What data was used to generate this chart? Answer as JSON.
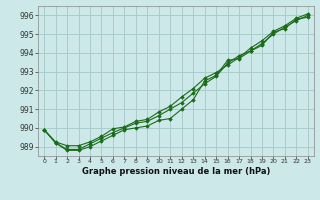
{
  "title": "Graphe pression niveau de la mer (hPa)",
  "bg_color": "#cce8e8",
  "grid_color": "#aacccc",
  "line_color": "#1a6b1a",
  "x_labels": [
    "0",
    "1",
    "2",
    "3",
    "4",
    "5",
    "6",
    "7",
    "8",
    "9",
    "10",
    "11",
    "12",
    "13",
    "14",
    "15",
    "16",
    "17",
    "18",
    "19",
    "20",
    "21",
    "22",
    "23"
  ],
  "ylim": [
    988.5,
    996.5
  ],
  "yticks": [
    989,
    990,
    991,
    992,
    993,
    994,
    995,
    996
  ],
  "line1": [
    989.9,
    989.2,
    988.8,
    988.8,
    989.0,
    989.3,
    989.6,
    989.9,
    990.0,
    990.1,
    990.4,
    990.5,
    991.0,
    991.5,
    992.5,
    992.8,
    993.6,
    993.7,
    994.1,
    994.4,
    995.1,
    995.3,
    995.8,
    995.9
  ],
  "line2": [
    989.9,
    989.2,
    988.85,
    988.85,
    989.15,
    989.45,
    989.75,
    990.0,
    990.25,
    990.35,
    990.65,
    991.0,
    991.35,
    991.85,
    992.35,
    992.75,
    993.45,
    993.85,
    994.1,
    994.5,
    995.0,
    995.38,
    995.72,
    996.0
  ],
  "line3": [
    989.9,
    989.25,
    989.05,
    989.05,
    989.25,
    989.55,
    989.95,
    990.05,
    990.35,
    990.45,
    990.85,
    991.15,
    991.65,
    992.1,
    992.65,
    992.95,
    993.35,
    993.75,
    994.25,
    994.65,
    995.15,
    995.45,
    995.85,
    996.08
  ]
}
